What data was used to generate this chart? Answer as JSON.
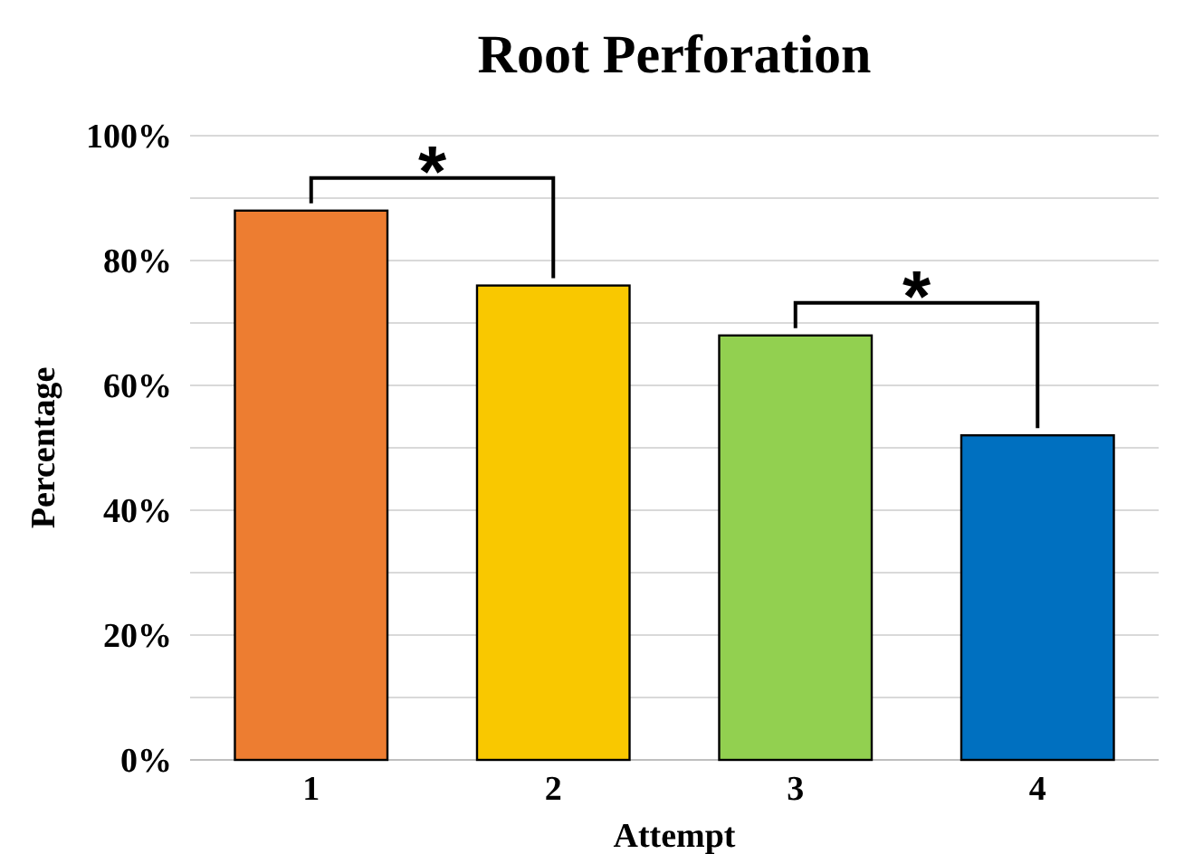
{
  "chart_data": {
    "type": "bar",
    "title": "Root Perforation",
    "xlabel": "Attempt",
    "ylabel": "Percentage",
    "categories": [
      "1",
      "2",
      "3",
      "4"
    ],
    "values": [
      88,
      76,
      68,
      52
    ],
    "colors": [
      "#ed7d31",
      "#f9c800",
      "#92d050",
      "#0070c0"
    ],
    "ylim": [
      0,
      100
    ],
    "yticks": [
      {
        "value": 0,
        "label": "0%"
      },
      {
        "value": 10,
        "label": null
      },
      {
        "value": 20,
        "label": "20%"
      },
      {
        "value": 30,
        "label": null
      },
      {
        "value": 40,
        "label": "40%"
      },
      {
        "value": 50,
        "label": null
      },
      {
        "value": 60,
        "label": "60%"
      },
      {
        "value": 70,
        "label": null
      },
      {
        "value": 80,
        "label": "80%"
      },
      {
        "value": 90,
        "label": null
      },
      {
        "value": 100,
        "label": "100%"
      }
    ],
    "grid": "y",
    "annotations": [
      "*",
      "*"
    ]
  }
}
